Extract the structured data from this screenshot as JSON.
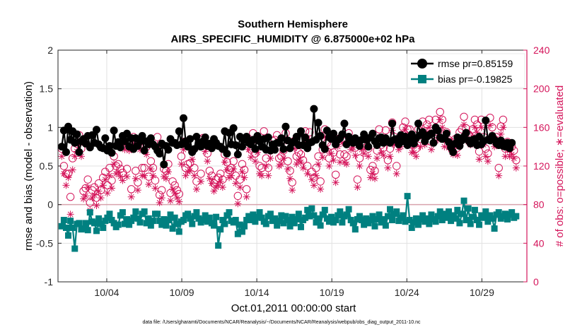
{
  "chart_data": {
    "type": "line",
    "title": "Southern Hemisphere",
    "subtitle": "AIRS_SPECIFIC_HUMIDITY @ 6.875000e+02 hPa",
    "xlabel": "Oct.01,2011 00:00:00 start",
    "ylabel": "rmse and bias (model - observation)",
    "y2label": "# of obs: o=possible; ∗=evaluated",
    "footnote": "data file: /Users/gharamti/Documents/NCAR/Reanalysis/~/Documents/NCAR/Reanalysis/webpub/obs_diag_output_2011-10.nc",
    "xlim": [
      0.75,
      32.0
    ],
    "ylim": [
      -1,
      2
    ],
    "y2lim": [
      0,
      240
    ],
    "xticks": [
      4,
      9,
      14,
      19,
      24,
      29
    ],
    "xtick_labels": [
      "10/04",
      "10/09",
      "10/14",
      "10/19",
      "10/24",
      "10/29"
    ],
    "yticks": [
      -1,
      -0.5,
      0,
      0.5,
      1,
      1.5,
      2
    ],
    "ytick_labels": [
      "-1",
      "-0.5",
      "0",
      "0.5",
      "1",
      "1.5",
      "2"
    ],
    "y2ticks": [
      0,
      40,
      80,
      120,
      160,
      200,
      240
    ],
    "y2tick_labels": [
      "0",
      "40",
      "80",
      "120",
      "160",
      "200",
      "240"
    ],
    "grid": true,
    "legend_position": "top-right",
    "colors": {
      "rmse": "#000000",
      "bias": "#008080",
      "obs": "#d4145a",
      "zero_line": "#d9a3ad",
      "grid": "#e1e1e1"
    },
    "series": [
      {
        "name": "rmse pr=0.85159",
        "axis": "left",
        "marker": "circle",
        "values": [
          0.75,
          0.96,
          0.68,
          1.01,
          0.84,
          0.95,
          0.8,
          0.91,
          0.68,
          0.82,
          0.85,
          0.79,
          0.89,
          0.74,
          0.9,
          0.8,
          0.97,
          0.78,
          0.74,
          0.73,
          0.86,
          0.7,
          0.76,
          0.67,
          0.96,
          0.76,
          0.81,
          0.74,
          0.89,
          0.82,
          0.92,
          0.75,
          0.86,
          0.72,
          0.86,
          0.76,
          0.82,
          0.89,
          0.7,
          0.82,
          0.78,
          0.86,
          0.78,
          0.75,
          0.7,
          0.66,
          0.79,
          0.52,
          0.76,
          0.71,
          0.85,
          0.8,
          0.8,
          0.77,
          0.95,
          0.78,
          1.12,
          0.82,
          0.75,
          0.85,
          0.68,
          0.72,
          0.88,
          0.8,
          0.75,
          0.82,
          0.87,
          0.76,
          0.79,
          0.73,
          0.85,
          0.8,
          0.76,
          0.75,
          0.72,
          0.95,
          0.66,
          0.93,
          0.78,
          0.99,
          0.77,
          0.65,
          0.88,
          0.75,
          0.84,
          0.88,
          0.8,
          0.78,
          0.84,
          0.72,
          0.89,
          0.82,
          0.75,
          0.85,
          0.71,
          0.87,
          0.7,
          0.78,
          0.71,
          0.8,
          0.8,
          0.86,
          0.72,
          1.01,
          0.83,
          0.73,
          0.8,
          0.82,
          0.88,
          0.77,
          0.95,
          0.77,
          0.87,
          0.73,
          0.8,
          0.81,
          1.24,
          0.84,
          1.06,
          0.89,
          0.77,
          0.72,
          0.96,
          0.87,
          0.85,
          0.92,
          0.78,
          0.84,
          0.86,
          0.91,
          1.05,
          0.78,
          0.88,
          0.82,
          0.8,
          0.86,
          0.81,
          0.76,
          0.84,
          0.91,
          0.84,
          0.75,
          0.87,
          0.92,
          0.82,
          0.77,
          0.86,
          0.87,
          0.8,
          0.86,
          0.82,
          0.8,
          1.05,
          0.84,
          0.85,
          0.78,
          0.9,
          0.82,
          0.88,
          0.77,
          0.83,
          0.91,
          0.79,
          0.86,
          1.05,
          0.9,
          0.94,
          0.82,
          0.88,
          0.9,
          0.92,
          0.8,
          1.0,
          0.96,
          0.87,
          0.85,
          0.86,
          0.92,
          0.81,
          0.74,
          0.68,
          0.79,
          0.87,
          0.76,
          0.83,
          0.88,
          0.93,
          0.83,
          0.79,
          0.84,
          0.85,
          0.77,
          0.88,
          0.78,
          0.82,
          1.09,
          0.84,
          0.83,
          0.89,
          0.84,
          0.79,
          0.77,
          0.83,
          0.76,
          0.75,
          0.8,
          0.73,
          0.8
        ]
      },
      {
        "name": "bias pr=-0.19825",
        "axis": "left",
        "marker": "square",
        "values": [
          -0.28,
          -0.2,
          -0.3,
          -0.4,
          -0.21,
          -0.3,
          -0.57,
          -0.25,
          -0.24,
          -0.32,
          -0.31,
          -0.24,
          -0.33,
          -0.1,
          -0.22,
          -0.24,
          -0.34,
          -0.18,
          -0.25,
          -0.3,
          -0.21,
          -0.17,
          -0.12,
          -0.2,
          -0.24,
          -0.29,
          -0.26,
          -0.14,
          -0.1,
          -0.25,
          -0.19,
          -0.26,
          -0.21,
          -0.17,
          -0.09,
          -0.18,
          -0.23,
          -0.12,
          -0.09,
          -0.24,
          -0.18,
          -0.27,
          -0.21,
          -0.12,
          -0.12,
          -0.21,
          -0.26,
          -0.19,
          -0.27,
          -0.2,
          -0.13,
          -0.31,
          -0.17,
          -0.25,
          -0.35,
          -0.22,
          -0.2,
          -0.14,
          -0.12,
          -0.18,
          -0.25,
          -0.15,
          -0.1,
          -0.18,
          -0.23,
          -0.2,
          -0.14,
          -0.22,
          -0.17,
          -0.24,
          -0.27,
          -0.16,
          -0.53,
          -0.32,
          -0.2,
          -0.25,
          -0.14,
          -0.1,
          -0.21,
          -0.23,
          -0.2,
          -0.38,
          -0.26,
          -0.35,
          -0.28,
          -0.2,
          -0.15,
          -0.2,
          -0.13,
          -0.22,
          -0.16,
          -0.1,
          -0.17,
          -0.22,
          -0.25,
          -0.15,
          -0.12,
          -0.21,
          -0.18,
          -0.27,
          -0.21,
          -0.14,
          -0.24,
          -0.15,
          -0.2,
          -0.28,
          -0.16,
          -0.24,
          -0.19,
          -0.12,
          -0.29,
          -0.2,
          -0.17,
          -0.07,
          -0.15,
          -0.05,
          -0.14,
          -0.23,
          -0.18,
          -0.27,
          -0.13,
          -0.07,
          -0.18,
          -0.22,
          -0.16,
          -0.23,
          -0.2,
          -0.14,
          -0.09,
          -0.23,
          -0.15,
          -0.13,
          -0.06,
          -0.2,
          -0.24,
          -0.32,
          -0.19,
          -0.15,
          -0.2,
          -0.26,
          -0.18,
          -0.24,
          -0.2,
          -0.15,
          -0.28,
          -0.19,
          -0.13,
          -0.23,
          -0.19,
          -0.27,
          -0.15,
          -0.06,
          -0.2,
          -0.12,
          -0.09,
          -0.21,
          -0.17,
          -0.14,
          -0.22,
          0.11,
          -0.2,
          -0.3,
          -0.23,
          -0.18,
          -0.26,
          -0.19,
          -0.14,
          -0.22,
          -0.18,
          -0.25,
          -0.13,
          -0.19,
          -0.22,
          -0.15,
          -0.09,
          -0.2,
          -0.12,
          -0.17,
          -0.09,
          -0.21,
          -0.14,
          -0.18,
          -0.07,
          -0.24,
          -0.12,
          0.05,
          -0.2,
          -0.05,
          -0.25,
          -0.16,
          -0.07,
          -0.2,
          -0.26,
          -0.14,
          -0.17,
          -0.09,
          -0.22,
          -0.14,
          -0.18,
          -0.31,
          -0.13,
          -0.1,
          -0.18,
          -0.15,
          -0.12,
          -0.19,
          -0.13,
          -0.1,
          -0.17,
          -0.15
        ]
      },
      {
        "name": "possible",
        "axis": "right",
        "marker": "open-circle",
        "values": [
          138,
          120,
          112,
          112,
          88,
          128,
          138,
          143,
          152,
          138,
          94,
          97,
          106,
          82,
          95,
          98,
          87,
          102,
          95,
          108,
          114,
          100,
          118,
          105,
          130,
          120,
          122,
          117,
          113,
          145,
          117,
          144,
          96,
          150,
          115,
          103,
          145,
          118,
          118,
          140,
          109,
          125,
          118,
          105,
          150,
          90,
          95,
          117,
          115,
          122,
          92,
          104,
          100,
          95,
          91,
          130,
          145,
          118,
          122,
          123,
          135,
          118,
          104,
          148,
          112,
          149,
          143,
          133,
          115,
          110,
          102,
          106,
          108,
          112,
          106,
          132,
          124,
          116,
          118,
          125,
          110,
          89,
          106,
          122,
          116,
          96,
          145,
          137,
          154,
          133,
          142,
          120,
          118,
          156,
          128,
          118,
          136,
          146,
          147,
          152,
          128,
          130,
          136,
          154,
          125,
          115,
          103,
          146,
          130,
          134,
          132,
          126,
          156,
          120,
          155,
          114,
          108,
          118,
          130,
          104,
          137,
          158,
          144,
          128,
          141,
          134,
          111,
          148,
          132,
          152,
          132,
          130,
          154,
          145,
          147,
          139,
          106,
          128,
          145,
          141,
          148,
          138,
          116,
          120,
          115,
          136,
          158,
          142,
          139,
          157,
          126,
          138,
          165,
          150,
          120,
          145,
          148,
          160,
          166,
          158,
          158,
          142,
          142,
          138,
          158,
          148,
          166,
          150,
          163,
          168,
          145,
          152,
          168,
          155,
          176,
          168,
          148,
          155,
          147,
          145,
          140,
          148,
          139,
          155,
          158,
          171,
          159,
          153,
          150,
          158,
          168,
          163,
          135,
          168,
          150,
          138,
          133,
          170,
          160,
          148,
          150,
          118,
          161,
          168,
          138,
          145,
          138,
          140,
          136,
          126
        ]
      },
      {
        "name": "evaluated",
        "axis": "right",
        "marker": "asterisk",
        "values": [
          130,
          112,
          100,
          108,
          70,
          116,
          130,
          135,
          144,
          130,
          86,
          89,
          98,
          74,
          87,
          90,
          79,
          94,
          87,
          100,
          106,
          92,
          110,
          97,
          122,
          112,
          114,
          109,
          105,
          137,
          109,
          136,
          88,
          142,
          107,
          95,
          137,
          110,
          110,
          132,
          101,
          117,
          110,
          97,
          142,
          82,
          87,
          109,
          107,
          114,
          84,
          96,
          92,
          87,
          83,
          122,
          137,
          110,
          114,
          115,
          127,
          110,
          96,
          140,
          104,
          141,
          135,
          125,
          107,
          102,
          94,
          98,
          100,
          104,
          98,
          124,
          116,
          108,
          110,
          117,
          102,
          81,
          98,
          114,
          108,
          88,
          137,
          129,
          146,
          125,
          134,
          112,
          110,
          148,
          120,
          110,
          128,
          138,
          139,
          144,
          120,
          122,
          128,
          146,
          117,
          107,
          95,
          138,
          122,
          126,
          124,
          118,
          148,
          112,
          147,
          106,
          100,
          110,
          122,
          96,
          129,
          150,
          136,
          120,
          133,
          126,
          103,
          140,
          124,
          144,
          124,
          122,
          146,
          137,
          139,
          131,
          98,
          120,
          137,
          133,
          140,
          130,
          108,
          112,
          107,
          128,
          150,
          134,
          131,
          149,
          118,
          130,
          157,
          142,
          112,
          137,
          140,
          152,
          158,
          150,
          150,
          134,
          134,
          130,
          150,
          140,
          158,
          142,
          155,
          160,
          137,
          144,
          160,
          147,
          168,
          160,
          140,
          147,
          139,
          137,
          132,
          140,
          131,
          147,
          150,
          163,
          151,
          145,
          142,
          150,
          160,
          155,
          127,
          160,
          142,
          130,
          125,
          162,
          152,
          140,
          142,
          110,
          153,
          160,
          130,
          137,
          130,
          132,
          128,
          118
        ]
      }
    ],
    "x_start": 1.0,
    "x_step": 0.1449
  }
}
